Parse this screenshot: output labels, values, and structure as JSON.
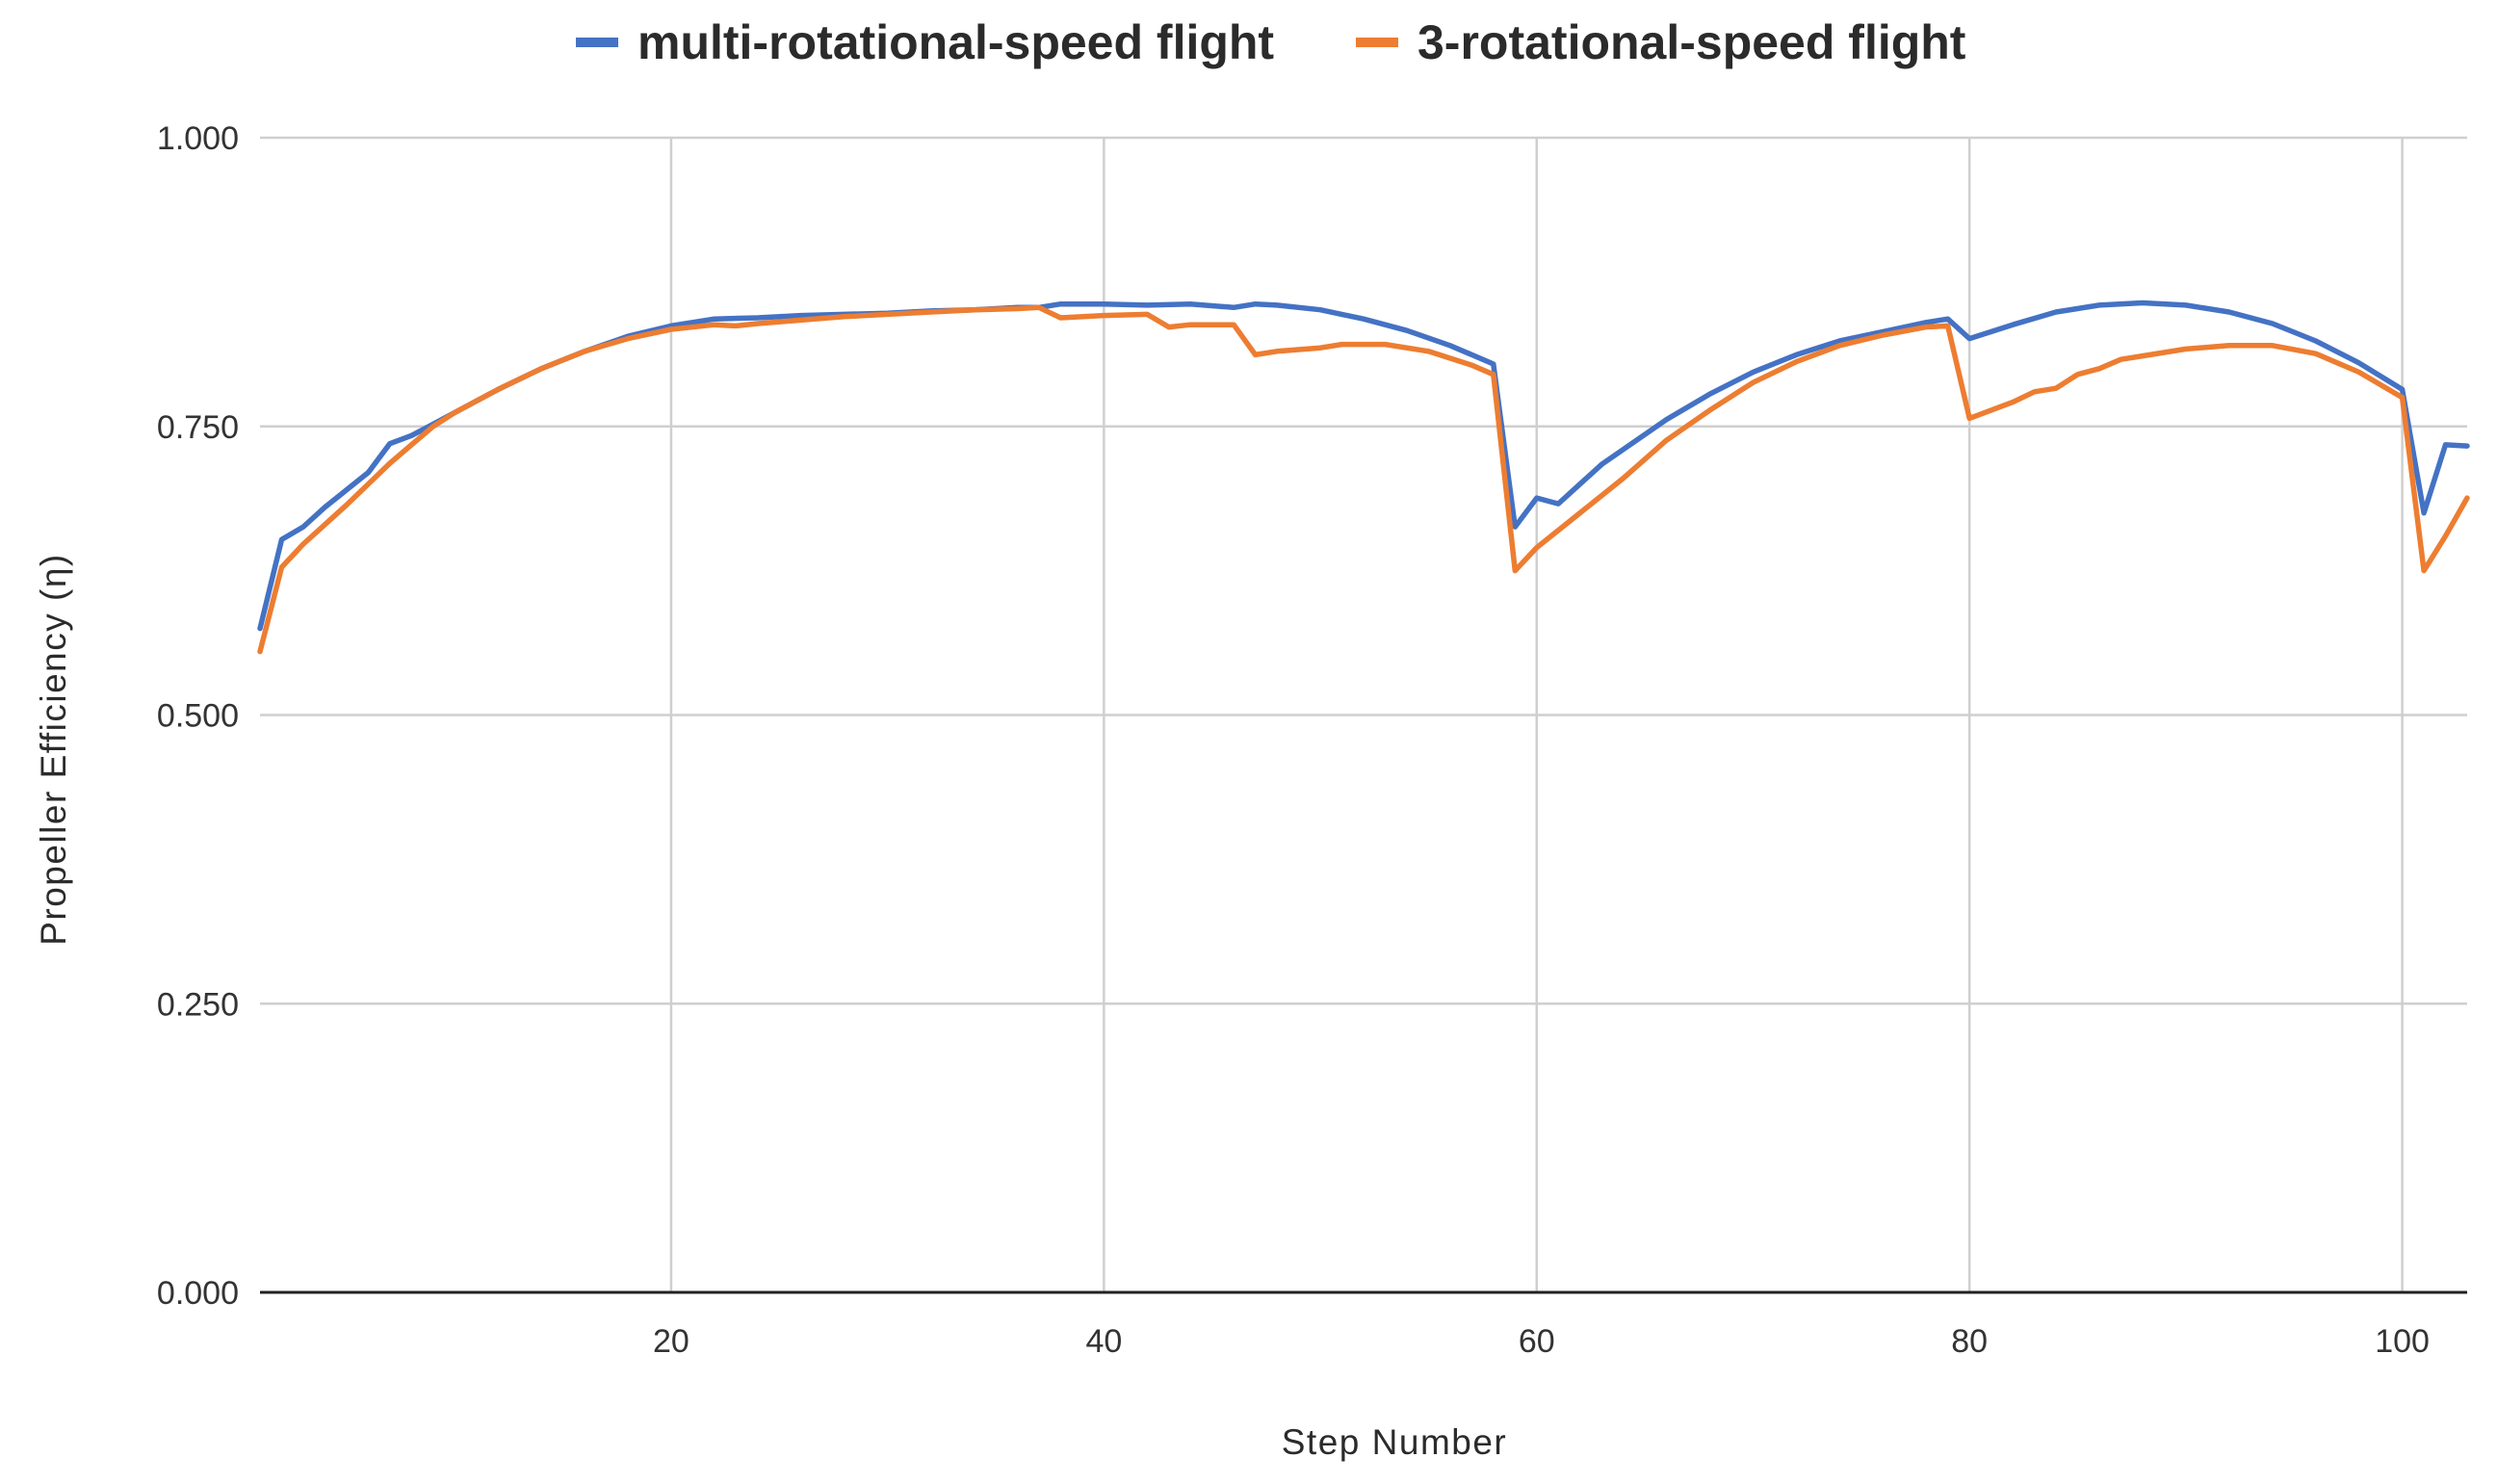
{
  "chart_data": {
    "type": "line",
    "title": "",
    "xlabel": "Step Number",
    "ylabel": "Propeller Efficiency (η)",
    "xlim": [
      1,
      103
    ],
    "ylim": [
      0,
      1
    ],
    "x_ticks": [
      20,
      40,
      60,
      80,
      100
    ],
    "x_tick_labels": [
      "20",
      "40",
      "60",
      "80",
      "100"
    ],
    "y_ticks": [
      0,
      0.25,
      0.5,
      0.75,
      1.0
    ],
    "y_tick_labels": [
      "0.000",
      "0.250",
      "0.500",
      "0.750",
      "1.000"
    ],
    "grid": true,
    "legend_position": "top-center",
    "series": [
      {
        "name": "multi-rotational-speed flight",
        "color": "#4472C4",
        "points": [
          [
            1,
            0.575
          ],
          [
            2,
            0.652
          ],
          [
            3,
            0.663
          ],
          [
            4,
            0.68
          ],
          [
            5,
            0.695
          ],
          [
            6,
            0.71
          ],
          [
            7,
            0.735
          ],
          [
            8,
            0.742
          ],
          [
            9,
            0.752
          ],
          [
            10,
            0.762
          ],
          [
            12,
            0.782
          ],
          [
            14,
            0.8
          ],
          [
            16,
            0.815
          ],
          [
            18,
            0.828
          ],
          [
            20,
            0.837
          ],
          [
            22,
            0.843
          ],
          [
            24,
            0.844
          ],
          [
            26,
            0.846
          ],
          [
            28,
            0.847
          ],
          [
            30,
            0.848
          ],
          [
            32,
            0.85
          ],
          [
            34,
            0.851
          ],
          [
            36,
            0.853
          ],
          [
            37,
            0.853
          ],
          [
            38,
            0.856
          ],
          [
            40,
            0.856
          ],
          [
            42,
            0.855
          ],
          [
            44,
            0.856
          ],
          [
            46,
            0.853
          ],
          [
            47,
            0.856
          ],
          [
            48,
            0.855
          ],
          [
            50,
            0.851
          ],
          [
            52,
            0.843
          ],
          [
            54,
            0.833
          ],
          [
            56,
            0.82
          ],
          [
            58,
            0.804
          ],
          [
            59,
            0.663
          ],
          [
            60,
            0.688
          ],
          [
            61,
            0.683
          ],
          [
            62,
            0.7
          ],
          [
            63,
            0.717
          ],
          [
            64,
            0.73
          ],
          [
            66,
            0.756
          ],
          [
            68,
            0.778
          ],
          [
            70,
            0.797
          ],
          [
            72,
            0.812
          ],
          [
            74,
            0.824
          ],
          [
            76,
            0.832
          ],
          [
            78,
            0.84
          ],
          [
            79,
            0.843
          ],
          [
            80,
            0.826
          ],
          [
            82,
            0.838
          ],
          [
            84,
            0.849
          ],
          [
            86,
            0.855
          ],
          [
            88,
            0.857
          ],
          [
            90,
            0.855
          ],
          [
            92,
            0.849
          ],
          [
            94,
            0.839
          ],
          [
            96,
            0.824
          ],
          [
            98,
            0.805
          ],
          [
            100,
            0.782
          ],
          [
            101,
            0.675
          ],
          [
            102,
            0.734
          ],
          [
            103,
            0.733
          ]
        ]
      },
      {
        "name": "3-rotational-speed flight",
        "color": "#ED7D31",
        "points": [
          [
            1,
            0.555
          ],
          [
            2,
            0.628
          ],
          [
            3,
            0.648
          ],
          [
            4,
            0.665
          ],
          [
            5,
            0.682
          ],
          [
            6,
            0.7
          ],
          [
            7,
            0.718
          ],
          [
            8,
            0.734
          ],
          [
            9,
            0.75
          ],
          [
            10,
            0.762
          ],
          [
            12,
            0.782
          ],
          [
            14,
            0.8
          ],
          [
            16,
            0.815
          ],
          [
            18,
            0.826
          ],
          [
            20,
            0.834
          ],
          [
            22,
            0.838
          ],
          [
            23,
            0.837
          ],
          [
            24,
            0.839
          ],
          [
            26,
            0.842
          ],
          [
            28,
            0.845
          ],
          [
            30,
            0.847
          ],
          [
            32,
            0.849
          ],
          [
            34,
            0.851
          ],
          [
            36,
            0.852
          ],
          [
            37,
            0.853
          ],
          [
            38,
            0.844
          ],
          [
            40,
            0.846
          ],
          [
            42,
            0.847
          ],
          [
            43,
            0.836
          ],
          [
            44,
            0.838
          ],
          [
            46,
            0.838
          ],
          [
            47,
            0.812
          ],
          [
            48,
            0.815
          ],
          [
            50,
            0.818
          ],
          [
            51,
            0.821
          ],
          [
            53,
            0.821
          ],
          [
            55,
            0.815
          ],
          [
            57,
            0.803
          ],
          [
            58,
            0.795
          ],
          [
            59,
            0.625
          ],
          [
            60,
            0.645
          ],
          [
            62,
            0.675
          ],
          [
            64,
            0.705
          ],
          [
            66,
            0.738
          ],
          [
            68,
            0.764
          ],
          [
            70,
            0.788
          ],
          [
            72,
            0.806
          ],
          [
            74,
            0.82
          ],
          [
            76,
            0.829
          ],
          [
            78,
            0.836
          ],
          [
            79,
            0.837
          ],
          [
            80,
            0.757
          ],
          [
            82,
            0.771
          ],
          [
            83,
            0.78
          ],
          [
            84,
            0.783
          ],
          [
            85,
            0.795
          ],
          [
            86,
            0.8
          ],
          [
            87,
            0.808
          ],
          [
            88,
            0.811
          ],
          [
            90,
            0.817
          ],
          [
            92,
            0.82
          ],
          [
            94,
            0.82
          ],
          [
            96,
            0.813
          ],
          [
            98,
            0.797
          ],
          [
            100,
            0.775
          ],
          [
            101,
            0.625
          ],
          [
            102,
            0.655
          ],
          [
            103,
            0.688
          ]
        ]
      }
    ]
  }
}
